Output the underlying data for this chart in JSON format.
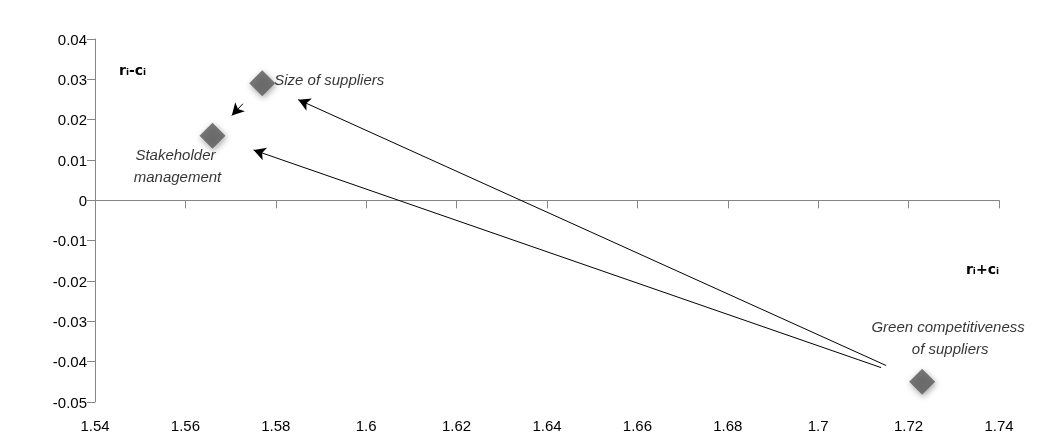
{
  "chart_data": {
    "type": "scatter",
    "xlabel": "rᵢ+cᵢ",
    "ylabel": "rᵢ-cᵢ",
    "x": [
      1.577,
      1.566,
      1.723
    ],
    "values": [
      0.029,
      0.016,
      -0.045
    ],
    "color": "#595959",
    "marker": "diamond",
    "xlim": [
      1.54,
      1.74
    ],
    "xticks": [
      1.54,
      1.56,
      1.58,
      1.6,
      1.62,
      1.64,
      1.66,
      1.68,
      1.7,
      1.72,
      1.74
    ],
    "ylim": [
      -0.05,
      0.04
    ],
    "yticks": [
      -0.05,
      -0.04,
      -0.03,
      -0.02,
      -0.01,
      0,
      0.01,
      0.02,
      0.03,
      0.04
    ],
    "annotations": [
      {
        "text": "Size of suppliers",
        "x": 1.577,
        "y": 0.029
      },
      {
        "text": "Stakeholder management",
        "x": 1.566,
        "y": 0.016
      },
      {
        "text": "Green competitiveness of suppliers",
        "x": 1.723,
        "y": -0.045
      }
    ]
  }
}
